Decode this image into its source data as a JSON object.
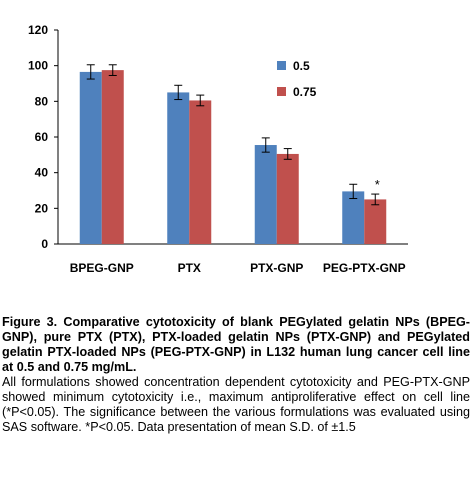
{
  "chart_data": {
    "type": "bar",
    "categories": [
      "BPEG-GNP",
      "PTX",
      "PTX-GNP",
      "PEG-PTX-GNP"
    ],
    "series": [
      {
        "name": "0.5",
        "color": "#4f81bd",
        "values": [
          96.5,
          85,
          55.5,
          29.5
        ],
        "errors": [
          4,
          4,
          4,
          4
        ]
      },
      {
        "name": "0.75",
        "color": "#c0504d",
        "values": [
          97.5,
          80.5,
          50.5,
          25
        ],
        "errors": [
          3,
          3,
          3,
          3
        ]
      }
    ],
    "ylim": [
      0,
      120
    ],
    "yticks": [
      0,
      20,
      40,
      60,
      80,
      100,
      120
    ],
    "title": "",
    "xlabel": "",
    "ylabel": "",
    "grid": false,
    "legend_position": "right",
    "annotation": {
      "text": "*",
      "category": "PEG-PTX-GNP",
      "series": "0.75"
    }
  },
  "caption": {
    "title": "Figure 3. Comparative cytotoxicity of blank PEGylated gelatin NPs (BPEG-GNP), pure PTX (PTX), PTX-loaded gelatin NPs (PTX-GNP) and PEGylated gelatin PTX-loaded NPs (PEG-PTX-GNP) in L132 human lung cancer cell line at 0.5 and 0.75 mg/mL.",
    "body": "All formulations showed concentration dependent cytotoxicity and PEG-PTX-GNP showed minimum cytotoxicity i.e., maximum antiproliferative effect on cell line (*P<0.05). The significance between the various formulations was evaluated using SAS software. *P<0.05. Data presentation of mean S.D. of ±1.5"
  }
}
